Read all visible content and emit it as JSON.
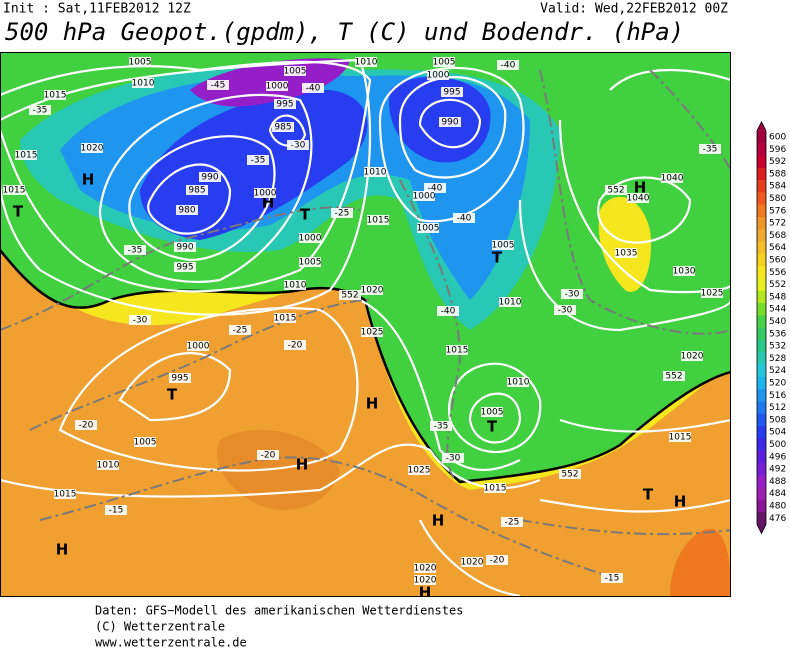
{
  "header": {
    "init": "Init : Sat,11FEB2012 12Z",
    "valid": "Valid: Wed,22FEB2012 00Z",
    "title": "500 hPa Geopot.(gpdm), T (C) und Bodendr. (hPa)"
  },
  "colorbar": {
    "labels": [
      600,
      596,
      592,
      588,
      584,
      580,
      576,
      572,
      568,
      564,
      560,
      556,
      552,
      548,
      544,
      540,
      536,
      532,
      528,
      524,
      520,
      516,
      512,
      508,
      504,
      500,
      496,
      492,
      488,
      484,
      480,
      476
    ],
    "colors": [
      "#a0003c",
      "#b4003c",
      "#c80032",
      "#dc1e1e",
      "#e63c1e",
      "#f05a1e",
      "#f0781e",
      "#f09628",
      "#f0aa32",
      "#f5be28",
      "#f5d21e",
      "#f5e61e",
      "#e6f01e",
      "#b4e61e",
      "#78dc28",
      "#46d246",
      "#32c864",
      "#28c88c",
      "#28c8b4",
      "#28c8dc",
      "#1eb4f0",
      "#1e96f0",
      "#1e78f0",
      "#1e5af0",
      "#283cf0",
      "#3c28e6",
      "#5a1edc",
      "#781ed2",
      "#961ec8",
      "#a01eb4",
      "#8c1496",
      "#641464"
    ]
  },
  "map": {
    "labels": [
      "1005",
      "1010",
      "1015",
      "-35",
      "1020",
      "H",
      "1015",
      "1015",
      "T",
      "-45",
      "1005",
      "1000",
      "995",
      "985",
      "-40",
      "-30",
      "-35",
      "990",
      "985",
      "980",
      "H",
      "1000",
      "T",
      "990",
      "995",
      "-35",
      "1000",
      "1005",
      "1010",
      "1010",
      "1005",
      "1000",
      "995",
      "990",
      "-40",
      "-40",
      "1010",
      "1000",
      "-40",
      "1005",
      "-25",
      "1015",
      "T",
      "1005",
      "1010",
      "-40",
      "1020",
      "552",
      "1015",
      "-25",
      "-20",
      "1000",
      "-30",
      "995",
      "T",
      "-20",
      "1005",
      "1010",
      "1015",
      "-15",
      "H",
      "1025",
      "1015",
      "H",
      "-20",
      "H",
      "1025",
      "-30",
      "1015",
      "552",
      "1010",
      "1005",
      "T",
      "-35",
      "-25",
      "H",
      "1020",
      "1020",
      "1020",
      "-20",
      "H",
      "-15",
      "T",
      "H",
      "1015",
      "552",
      "1020",
      "1025",
      "-30",
      "-30",
      "1030",
      "1035",
      "1040",
      "1040",
      "552",
      "H",
      "-35"
    ]
  },
  "footer": {
    "lines": [
      "Daten: GFS−Modell des amerikanischen Wetterdienstes",
      "(C) Wetterzentrale",
      "www.wetterzentrale.de"
    ]
  }
}
